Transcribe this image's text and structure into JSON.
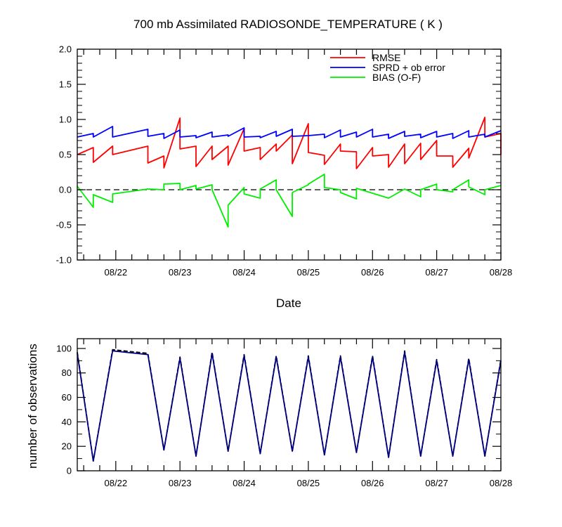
{
  "chart_data": [
    {
      "type": "line",
      "title": "700 mb Assimilated RADIOSONDE_TEMPERATURE ( K )",
      "xlabel": "Date",
      "ylabel": "",
      "xlim": [
        -0.6,
        6.0
      ],
      "ylim": [
        -1.0,
        2.0
      ],
      "x_tick_labels": [
        "08/22",
        "08/23",
        "08/24",
        "08/25",
        "08/26",
        "08/27",
        "08/28"
      ],
      "y_ticks": [
        -1.0,
        -0.5,
        0.0,
        0.5,
        1.0,
        1.5,
        2.0
      ],
      "y_tick_labels": [
        "-1.0",
        "-0.5",
        "0.0",
        "0.5",
        "1.0",
        "1.5",
        "2.0"
      ],
      "reference_line": {
        "y": 0,
        "style": "dashed"
      },
      "legend_position": "top-right",
      "series": [
        {
          "name": "RMSE",
          "color": "#ff0000",
          "points": [
            [
              -0.6,
              0.5
            ],
            [
              -0.35,
              0.6
            ],
            [
              -0.35,
              0.39
            ],
            [
              -0.05,
              0.62
            ],
            [
              -0.05,
              0.5
            ],
            [
              0.5,
              0.62
            ],
            [
              0.5,
              0.38
            ],
            [
              0.75,
              0.48
            ],
            [
              0.75,
              0.31
            ],
            [
              1.0,
              1.02
            ],
            [
              1.0,
              0.58
            ],
            [
              1.25,
              0.62
            ],
            [
              1.25,
              0.33
            ],
            [
              1.5,
              0.62
            ],
            [
              1.5,
              0.43
            ],
            [
              1.75,
              0.62
            ],
            [
              1.75,
              0.35
            ],
            [
              2.0,
              0.87
            ],
            [
              2.0,
              0.55
            ],
            [
              2.25,
              0.6
            ],
            [
              2.25,
              0.43
            ],
            [
              2.5,
              0.65
            ],
            [
              2.5,
              0.55
            ],
            [
              2.75,
              0.78
            ],
            [
              2.75,
              0.37
            ],
            [
              3.0,
              0.94
            ],
            [
              3.0,
              0.53
            ],
            [
              3.25,
              0.49
            ],
            [
              3.25,
              0.36
            ],
            [
              3.5,
              0.65
            ],
            [
              3.5,
              0.55
            ],
            [
              3.75,
              0.54
            ],
            [
              3.75,
              0.3
            ],
            [
              4.0,
              0.6
            ],
            [
              4.0,
              0.48
            ],
            [
              4.25,
              0.5
            ],
            [
              4.25,
              0.32
            ],
            [
              4.5,
              0.65
            ],
            [
              4.5,
              0.37
            ],
            [
              4.75,
              0.66
            ],
            [
              4.75,
              0.43
            ],
            [
              5.0,
              0.7
            ],
            [
              5.0,
              0.48
            ],
            [
              5.25,
              0.48
            ],
            [
              5.25,
              0.32
            ],
            [
              5.5,
              0.59
            ],
            [
              5.5,
              0.45
            ],
            [
              5.75,
              1.03
            ],
            [
              5.75,
              0.75
            ],
            [
              6.0,
              0.8
            ],
            [
              6.0,
              0.5
            ]
          ]
        },
        {
          "name": "SPRD + ob error",
          "color": "#0000ff",
          "points": [
            [
              -0.6,
              0.75
            ],
            [
              -0.35,
              0.8
            ],
            [
              -0.35,
              0.75
            ],
            [
              -0.05,
              0.9
            ],
            [
              -0.05,
              0.75
            ],
            [
              0.5,
              0.86
            ],
            [
              0.5,
              0.76
            ],
            [
              0.75,
              0.8
            ],
            [
              0.75,
              0.73
            ],
            [
              1.0,
              0.85
            ],
            [
              1.0,
              0.75
            ],
            [
              1.25,
              0.77
            ],
            [
              1.25,
              0.74
            ],
            [
              1.5,
              0.82
            ],
            [
              1.5,
              0.75
            ],
            [
              1.75,
              0.78
            ],
            [
              1.75,
              0.76
            ],
            [
              2.0,
              0.88
            ],
            [
              2.0,
              0.75
            ],
            [
              2.25,
              0.76
            ],
            [
              2.25,
              0.74
            ],
            [
              2.5,
              0.83
            ],
            [
              2.5,
              0.76
            ],
            [
              2.75,
              0.86
            ],
            [
              2.75,
              0.76
            ],
            [
              3.0,
              0.77
            ],
            [
              3.0,
              0.77
            ],
            [
              3.25,
              0.79
            ],
            [
              3.25,
              0.74
            ],
            [
              3.5,
              0.85
            ],
            [
              3.5,
              0.75
            ],
            [
              3.75,
              0.82
            ],
            [
              3.75,
              0.75
            ],
            [
              4.0,
              0.86
            ],
            [
              4.0,
              0.75
            ],
            [
              4.25,
              0.79
            ],
            [
              4.25,
              0.73
            ],
            [
              4.5,
              0.83
            ],
            [
              4.5,
              0.76
            ],
            [
              4.75,
              0.79
            ],
            [
              4.75,
              0.74
            ],
            [
              5.0,
              0.83
            ],
            [
              5.0,
              0.75
            ],
            [
              5.25,
              0.8
            ],
            [
              5.25,
              0.73
            ],
            [
              5.5,
              0.84
            ],
            [
              5.5,
              0.75
            ],
            [
              5.75,
              0.79
            ],
            [
              5.75,
              0.75
            ],
            [
              6.0,
              0.84
            ]
          ]
        },
        {
          "name": "BIAS (O-F)",
          "color": "#00ee00",
          "points": [
            [
              -0.6,
              0.05
            ],
            [
              -0.35,
              -0.25
            ],
            [
              -0.35,
              -0.07
            ],
            [
              -0.05,
              -0.18
            ],
            [
              -0.05,
              -0.06
            ],
            [
              0.5,
              0.01
            ],
            [
              0.5,
              0.01
            ],
            [
              0.75,
              0.0
            ],
            [
              0.75,
              0.08
            ],
            [
              1.0,
              0.09
            ],
            [
              1.0,
              0.0
            ],
            [
              1.25,
              0.06
            ],
            [
              1.25,
              0.01
            ],
            [
              1.5,
              0.07
            ],
            [
              1.5,
              0.0
            ],
            [
              1.75,
              -0.53
            ],
            [
              1.75,
              -0.22
            ],
            [
              2.0,
              0.03
            ],
            [
              2.0,
              -0.06
            ],
            [
              2.25,
              -0.12
            ],
            [
              2.25,
              0.01
            ],
            [
              2.5,
              0.14
            ],
            [
              2.5,
              0.0
            ],
            [
              2.75,
              -0.38
            ],
            [
              2.75,
              -0.04
            ],
            [
              3.0,
              0.07
            ],
            [
              3.0,
              0.08
            ],
            [
              3.25,
              0.22
            ],
            [
              3.25,
              0.03
            ],
            [
              3.5,
              0.0
            ],
            [
              3.5,
              -0.04
            ],
            [
              3.75,
              -0.13
            ],
            [
              3.75,
              0.02
            ],
            [
              4.0,
              -0.05
            ],
            [
              4.0,
              -0.05
            ],
            [
              4.25,
              -0.12
            ],
            [
              4.25,
              -0.12
            ],
            [
              4.5,
              0.01
            ],
            [
              4.5,
              0.01
            ],
            [
              4.75,
              -0.1
            ],
            [
              4.75,
              0.0
            ],
            [
              5.0,
              0.08
            ],
            [
              5.0,
              0.0
            ],
            [
              5.25,
              -0.03
            ],
            [
              5.25,
              0.0
            ],
            [
              5.5,
              0.14
            ],
            [
              5.5,
              0.04
            ],
            [
              5.75,
              -0.07
            ],
            [
              5.75,
              0.0
            ],
            [
              6.0,
              0.06
            ]
          ]
        }
      ]
    },
    {
      "type": "line",
      "title": "",
      "xlabel": "",
      "ylabel": "number of observations",
      "xlim": [
        -0.6,
        6.0
      ],
      "ylim": [
        0,
        108
      ],
      "x_tick_labels": [
        "08/22",
        "08/23",
        "08/24",
        "08/25",
        "08/26",
        "08/27",
        "08/28"
      ],
      "y_ticks": [
        0,
        20,
        40,
        60,
        80,
        100
      ],
      "y_tick_labels": [
        "0",
        "20",
        "40",
        "60",
        "80",
        "100"
      ],
      "series": [
        {
          "color": "#000000",
          "style": "dashed",
          "points": [
            [
              -0.6,
              97
            ],
            [
              -0.35,
              8
            ],
            [
              -0.05,
              99
            ],
            [
              0.5,
              96
            ],
            [
              0.75,
              17
            ],
            [
              1.0,
              93
            ],
            [
              1.25,
              12
            ],
            [
              1.5,
              97
            ],
            [
              1.75,
              16
            ],
            [
              2.0,
              95
            ],
            [
              2.25,
              14
            ],
            [
              2.5,
              94
            ],
            [
              2.75,
              16
            ],
            [
              3.0,
              94
            ],
            [
              3.25,
              13
            ],
            [
              3.5,
              94
            ],
            [
              3.75,
              15
            ],
            [
              4.0,
              94
            ],
            [
              4.25,
              11
            ],
            [
              4.5,
              98
            ],
            [
              4.75,
              12
            ],
            [
              5.0,
              91
            ],
            [
              5.25,
              12
            ],
            [
              5.5,
              92
            ],
            [
              5.75,
              12
            ],
            [
              6.0,
              91
            ]
          ]
        },
        {
          "color": "#000080",
          "style": "solid",
          "points": [
            [
              -0.6,
              96
            ],
            [
              -0.35,
              8
            ],
            [
              -0.05,
              98
            ],
            [
              0.5,
              95
            ],
            [
              0.75,
              17
            ],
            [
              1.0,
              92
            ],
            [
              1.25,
              12
            ],
            [
              1.5,
              96
            ],
            [
              1.75,
              16
            ],
            [
              2.0,
              94
            ],
            [
              2.25,
              14
            ],
            [
              2.5,
              93
            ],
            [
              2.75,
              16
            ],
            [
              3.0,
              93
            ],
            [
              3.25,
              13
            ],
            [
              3.5,
              93
            ],
            [
              3.75,
              15
            ],
            [
              4.0,
              93
            ],
            [
              4.25,
              11
            ],
            [
              4.5,
              97
            ],
            [
              4.75,
              12
            ],
            [
              5.0,
              90
            ],
            [
              5.25,
              12
            ],
            [
              5.5,
              91
            ],
            [
              5.75,
              12
            ],
            [
              6.0,
              90
            ]
          ]
        }
      ]
    }
  ]
}
